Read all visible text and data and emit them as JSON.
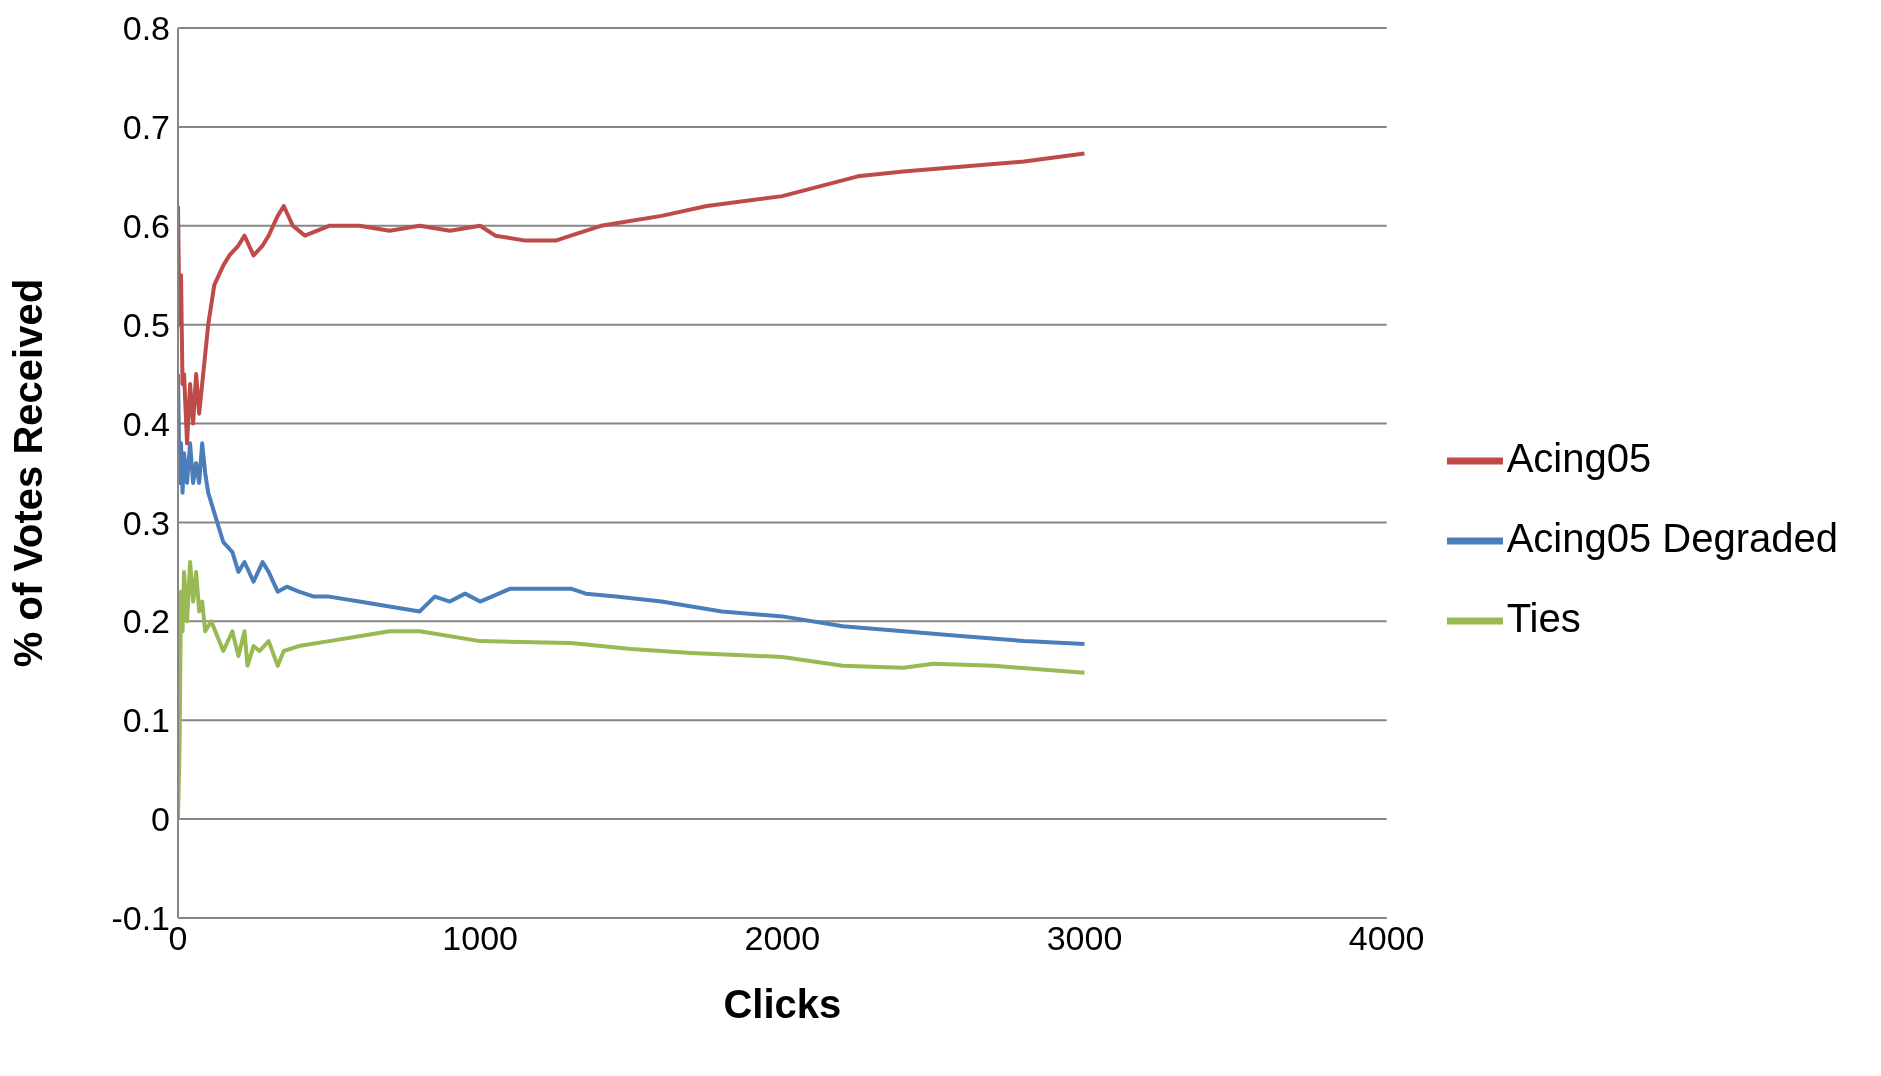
{
  "chart_data": {
    "type": "line",
    "xlabel": "Clicks",
    "ylabel": "% of Votes Received",
    "xlim": [
      0,
      4000
    ],
    "xticks": [
      0,
      1000,
      2000,
      3000,
      4000
    ],
    "ylim": [
      -0.1,
      0.8
    ],
    "yticks": [
      -0.1,
      0,
      0.1,
      0.2,
      0.3,
      0.4,
      0.5,
      0.6,
      0.7,
      0.8
    ],
    "grid": "y",
    "legend": "right",
    "marker": "none",
    "line_style": "solid",
    "series": [
      {
        "name": "Acing05 Degraded",
        "color": "#4a7ebb",
        "x": [
          0,
          5,
          10,
          15,
          20,
          30,
          40,
          50,
          60,
          70,
          80,
          90,
          100,
          120,
          150,
          180,
          200,
          220,
          250,
          280,
          300,
          330,
          360,
          400,
          450,
          500,
          600,
          700,
          800,
          850,
          900,
          950,
          1000,
          1100,
          1200,
          1300,
          1350,
          1450,
          1600,
          1800,
          2000,
          2200,
          2400,
          2600,
          2800,
          3000
        ],
        "values": [
          0.45,
          0.34,
          0.38,
          0.33,
          0.37,
          0.34,
          0.38,
          0.34,
          0.36,
          0.34,
          0.38,
          0.35,
          0.33,
          0.31,
          0.28,
          0.27,
          0.25,
          0.26,
          0.24,
          0.26,
          0.25,
          0.23,
          0.235,
          0.23,
          0.225,
          0.225,
          0.22,
          0.215,
          0.21,
          0.225,
          0.22,
          0.228,
          0.22,
          0.233,
          0.233,
          0.233,
          0.228,
          0.225,
          0.22,
          0.21,
          0.205,
          0.195,
          0.19,
          0.185,
          0.18,
          0.177
        ]
      },
      {
        "name": "Acing05",
        "color": "#be4b48",
        "x": [
          0,
          5,
          10,
          15,
          20,
          30,
          40,
          50,
          60,
          70,
          80,
          90,
          100,
          120,
          150,
          170,
          200,
          220,
          250,
          280,
          300,
          330,
          350,
          380,
          420,
          500,
          600,
          700,
          800,
          900,
          1000,
          1050,
          1150,
          1250,
          1300,
          1400,
          1600,
          1750,
          2000,
          2250,
          2400,
          2600,
          2800,
          3000
        ],
        "values": [
          0.62,
          0.5,
          0.55,
          0.44,
          0.45,
          0.38,
          0.44,
          0.4,
          0.45,
          0.41,
          0.44,
          0.47,
          0.5,
          0.54,
          0.56,
          0.57,
          0.58,
          0.59,
          0.57,
          0.58,
          0.59,
          0.61,
          0.62,
          0.6,
          0.59,
          0.6,
          0.6,
          0.595,
          0.6,
          0.595,
          0.6,
          0.59,
          0.585,
          0.585,
          0.59,
          0.6,
          0.61,
          0.62,
          0.63,
          0.65,
          0.655,
          0.66,
          0.665,
          0.673
        ]
      },
      {
        "name": "Ties",
        "color": "#98b954",
        "x": [
          0,
          5,
          10,
          15,
          20,
          30,
          40,
          50,
          60,
          70,
          80,
          90,
          110,
          150,
          180,
          200,
          220,
          230,
          250,
          270,
          300,
          330,
          350,
          400,
          500,
          600,
          700,
          800,
          1000,
          1300,
          1500,
          1700,
          2000,
          2200,
          2400,
          2500,
          2700,
          3000
        ],
        "values": [
          0,
          0.07,
          0.23,
          0.19,
          0.25,
          0.2,
          0.26,
          0.22,
          0.25,
          0.21,
          0.22,
          0.19,
          0.2,
          0.17,
          0.19,
          0.165,
          0.19,
          0.155,
          0.175,
          0.17,
          0.18,
          0.155,
          0.17,
          0.175,
          0.18,
          0.185,
          0.19,
          0.19,
          0.18,
          0.178,
          0.172,
          0.168,
          0.164,
          0.155,
          0.153,
          0.157,
          0.155,
          0.148
        ]
      }
    ]
  }
}
